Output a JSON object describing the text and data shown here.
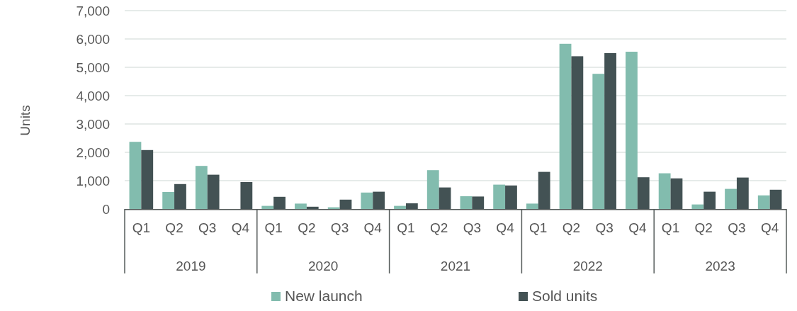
{
  "chart_data": {
    "type": "bar",
    "ylabel": "Units",
    "categories": [
      "Q1",
      "Q2",
      "Q3",
      "Q4",
      "Q1",
      "Q2",
      "Q3",
      "Q4",
      "Q1",
      "Q2",
      "Q3",
      "Q4",
      "Q1",
      "Q2",
      "Q3",
      "Q4",
      "Q1",
      "Q2",
      "Q3",
      "Q4"
    ],
    "annotations": [
      "2019",
      "2020",
      "2021",
      "2022",
      "2023"
    ],
    "series": [
      {
        "name": "New launch",
        "color": "#82bcae",
        "values": [
          2370,
          600,
          1520,
          0,
          110,
          190,
          60,
          580,
          110,
          1370,
          450,
          860,
          190,
          5830,
          4770,
          5550,
          1260,
          160,
          710,
          480
        ]
      },
      {
        "name": "Sold units",
        "color": "#435254",
        "values": [
          2080,
          880,
          1210,
          950,
          430,
          80,
          330,
          610,
          200,
          760,
          440,
          830,
          1310,
          5390,
          5500,
          1120,
          1080,
          610,
          1110,
          680
        ]
      }
    ],
    "ylim": [
      0,
      7000
    ],
    "yticks": [
      {
        "value": 0,
        "label": "0"
      },
      {
        "value": 1000,
        "label": "1,000"
      },
      {
        "value": 2000,
        "label": "2,000"
      },
      {
        "value": 3000,
        "label": "3,000"
      },
      {
        "value": 4000,
        "label": "4,000"
      },
      {
        "value": 5000,
        "label": "5,000"
      },
      {
        "value": 6000,
        "label": "6,000"
      },
      {
        "value": 7000,
        "label": "7,000"
      }
    ],
    "grid": "y",
    "legend": "bottom"
  }
}
